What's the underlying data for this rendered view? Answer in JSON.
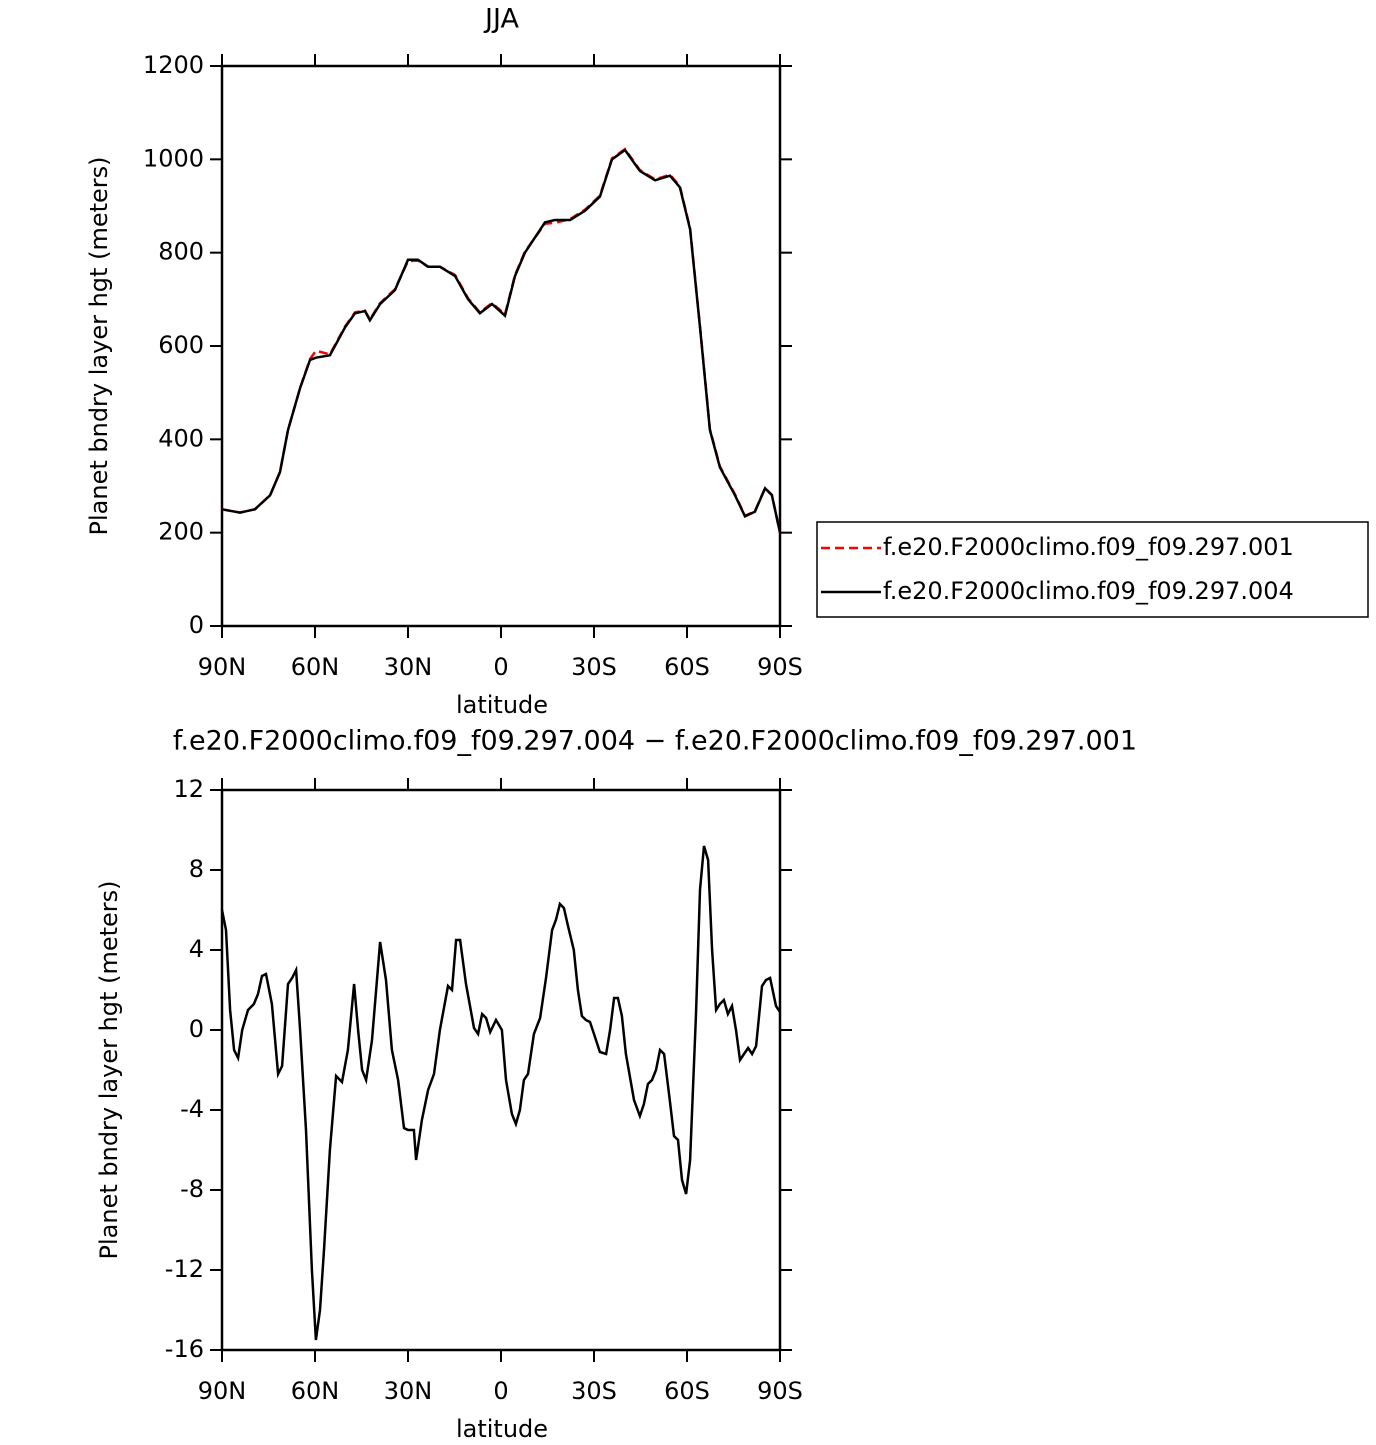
{
  "chart_data": [
    {
      "type": "line",
      "title": "JJA",
      "xlabel": "latitude",
      "ylabel": "Planet bndry layer hgt (meters)",
      "x": [
        90,
        84.2,
        79.4,
        74.5,
        71.3,
        68.7,
        64.8,
        61.6,
        59.7,
        55.2,
        50.3,
        47.1,
        43.9,
        42.3,
        39.0,
        34.2,
        30.0,
        26.8,
        23.5,
        19.7,
        14.8,
        10.6,
        6.8,
        2.9,
        -1.3,
        -4.5,
        -7.7,
        -14.2,
        -17.4,
        -22.3,
        -27.1,
        -31.9,
        -35.8,
        -40.0,
        -44.8,
        -49.7,
        -54.5,
        -57.7,
        -61.0,
        -64.2,
        -67.4,
        -70.6,
        -75.5,
        -78.7,
        -81.9,
        -85.2,
        -87.4,
        -90
      ],
      "series": [
        {
          "name": "f.e20.F2000climo.f09_f09.297.001",
          "color": "#ff0000",
          "linestyle": "dashed",
          "values": [
            250,
            243,
            250,
            280,
            330,
            420,
            510,
            572,
            590,
            582,
            642,
            672,
            676,
            657,
            692,
            722,
            782,
            783,
            770,
            770,
            752,
            702,
            672,
            692,
            668,
            752,
            802,
            862,
            864,
            872,
            892,
            922,
            1002,
            1022,
            977,
            957,
            967,
            942,
            852,
            642,
            422,
            342,
            282,
            236,
            246,
            296,
            281,
            200
          ]
        },
        {
          "name": "f.e20.F2000climo.f09_f09.297.004",
          "color": "#000000",
          "linestyle": "solid",
          "values": [
            250,
            243,
            250,
            280,
            330,
            420,
            510,
            570,
            575,
            580,
            640,
            670,
            675,
            655,
            690,
            720,
            785,
            785,
            770,
            770,
            750,
            700,
            670,
            690,
            665,
            750,
            800,
            865,
            870,
            870,
            890,
            920,
            1000,
            1020,
            975,
            955,
            965,
            940,
            850,
            640,
            420,
            340,
            280,
            235,
            245,
            295,
            280,
            200
          ]
        }
      ],
      "xlim": [
        90,
        -90
      ],
      "ylim": [
        0,
        1200
      ],
      "xticks": [
        {
          "value": 90,
          "label": "90N"
        },
        {
          "value": 60,
          "label": "60N"
        },
        {
          "value": 30,
          "label": "30N"
        },
        0,
        {
          "value": -30,
          "label": "30S"
        },
        {
          "value": -60,
          "label": "60S"
        },
        {
          "value": -90,
          "label": "90S"
        }
      ],
      "yticks": [
        0,
        200,
        400,
        600,
        800,
        1000,
        1200
      ],
      "legend": "right"
    },
    {
      "type": "line",
      "title": "f.e20.F2000climo.f09_f09.297.004 − f.e20.F2000climo.f09_f09.297.001",
      "xlabel": "latitude",
      "ylabel": "Planet bndry layer hgt (meters)",
      "x": [
        90,
        88.7,
        87.4,
        86.1,
        84.8,
        83.5,
        81.6,
        79.7,
        78.4,
        77.1,
        75.8,
        73.9,
        71.9,
        70.6,
        68.7,
        67.4,
        66.1,
        64.8,
        62.9,
        61.0,
        59.7,
        58.4,
        57.1,
        55.2,
        53.2,
        51.3,
        49.4,
        47.4,
        46.1,
        44.8,
        43.5,
        41.6,
        39.0,
        37.1,
        35.2,
        33.2,
        31.3,
        30.0,
        28.1,
        27.4,
        25.5,
        23.5,
        21.6,
        19.7,
        17.1,
        15.8,
        14.5,
        13.2,
        11.3,
        8.7,
        7.4,
        6.1,
        4.8,
        3.5,
        1.6,
        -0.3,
        -1.6,
        -3.5,
        -4.8,
        -6.1,
        -7.4,
        -8.7,
        -10.6,
        -12.6,
        -14.5,
        -16.5,
        -17.7,
        -19.0,
        -20.3,
        -21.6,
        -23.5,
        -24.8,
        -26.1,
        -27.4,
        -28.7,
        -30.0,
        -31.9,
        -33.9,
        -35.2,
        -36.5,
        -37.7,
        -39.0,
        -40.3,
        -42.9,
        -44.8,
        -46.1,
        -47.4,
        -48.7,
        -50.0,
        -51.3,
        -52.6,
        -54.5,
        -55.8,
        -57.1,
        -58.4,
        -59.7,
        -61.0,
        -62.9,
        -64.2,
        -65.5,
        -66.8,
        -68.1,
        -69.4,
        -70.6,
        -71.9,
        -73.2,
        -74.5,
        -75.8,
        -77.1,
        -78.4,
        -79.7,
        -81.0,
        -82.3,
        -84.2,
        -85.5,
        -86.8,
        -88.7,
        -90
      ],
      "series": [
        {
          "color": "#000000",
          "linestyle": "solid",
          "values": [
            6,
            5,
            1,
            -1,
            -1.4,
            0,
            1,
            1.3,
            1.8,
            2.7,
            2.8,
            1.3,
            -2.2,
            -1.8,
            2.3,
            2.6,
            3,
            0,
            -5,
            -12,
            -15.5,
            -14,
            -11,
            -6,
            -2.3,
            -2.6,
            -1,
            2.3,
            0,
            -2,
            -2.5,
            -0.5,
            4.4,
            2.5,
            -1,
            -2.5,
            -4.9,
            -5,
            -5,
            -6.5,
            -4.5,
            -3,
            -2.2,
            0,
            2.2,
            2,
            4.5,
            4.5,
            2.3,
            0.1,
            -0.2,
            0.8,
            0.6,
            -0.1,
            0.5,
            0,
            -2.5,
            -4.2,
            -4.7,
            -4,
            -2.5,
            -2.2,
            -0.2,
            0.6,
            2.6,
            5,
            5.5,
            6.3,
            6.1,
            5.2,
            4,
            2,
            0.7,
            0.5,
            0.4,
            -0.2,
            -1.1,
            -1.2,
            0,
            1.6,
            1.6,
            0.7,
            -1.2,
            -3.5,
            -4.3,
            -3.7,
            -2.7,
            -2.5,
            -2,
            -1,
            -1.2,
            -3.6,
            -5.3,
            -5.5,
            -7.5,
            -8.2,
            -6.5,
            0.8,
            7,
            9.2,
            8.5,
            4,
            1,
            1.3,
            1.5,
            0.8,
            1.2,
            0,
            -1.5,
            -1.2,
            -0.9,
            -1.2,
            -0.8,
            2.2,
            2.5,
            2.6,
            1.2,
            0.9
          ]
        }
      ],
      "xlim": [
        90,
        -90
      ],
      "ylim": [
        -16,
        12
      ],
      "xticks": [
        {
          "value": 90,
          "label": "90N"
        },
        {
          "value": 60,
          "label": "60N"
        },
        {
          "value": 30,
          "label": "30N"
        },
        0,
        {
          "value": -30,
          "label": "30S"
        },
        {
          "value": -60,
          "label": "60S"
        },
        {
          "value": -90,
          "label": "90S"
        }
      ],
      "yticks": [
        -16,
        -12,
        -8,
        -4,
        0,
        4,
        8,
        12
      ]
    }
  ]
}
